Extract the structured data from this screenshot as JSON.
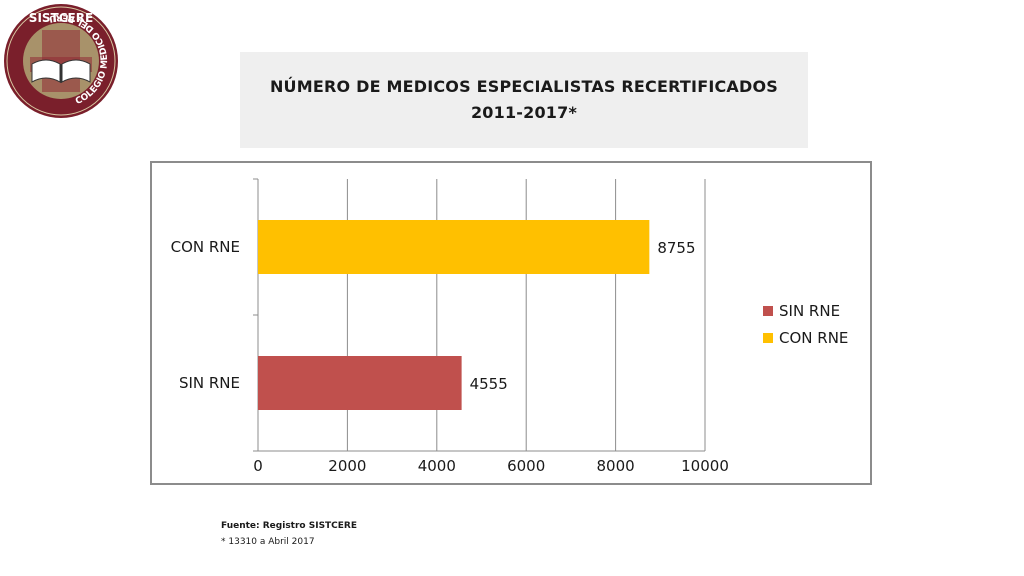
{
  "logo": {
    "top_text": "SISTCERE",
    "ring_text": "COLEGIO MEDICO DEL PERU",
    "colors": {
      "ring": "#7a1f2b",
      "inner": "#a8926a",
      "book": "#ffffff"
    }
  },
  "title": {
    "line1": "NÚMERO DE MEDICOS ESPECIALISTAS RECERTIFICADOS",
    "line2": "2011-2017*"
  },
  "chart_data": {
    "type": "bar",
    "orientation": "horizontal",
    "categories": [
      "SIN RNE",
      "CON RNE"
    ],
    "series": [
      {
        "name": "SIN RNE",
        "values": [
          4555,
          null
        ],
        "color": "#c0504d"
      },
      {
        "name": "CON RNE",
        "values": [
          null,
          8755
        ],
        "color": "#ffc000"
      }
    ],
    "data_labels": [
      "4555",
      "8755"
    ],
    "x_ticks": [
      0,
      2000,
      4000,
      6000,
      8000,
      10000
    ],
    "xlim": [
      0,
      10000
    ],
    "grid": true,
    "legend_position": "right",
    "title": "",
    "xlabel": "",
    "ylabel": ""
  },
  "footer": {
    "source": "Fuente: Registro SISTCERE",
    "note": "* 13310 a Abril 2017"
  }
}
